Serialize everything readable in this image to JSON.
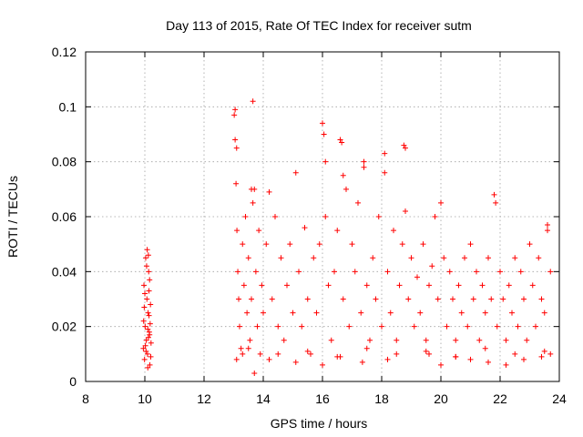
{
  "chart_data": {
    "type": "scatter",
    "title": "Day 113 of 2015, Rate Of TEC Index for receiver sutm",
    "xlabel": "GPS time / hours",
    "ylabel": "ROTI / TECUs",
    "xlim": [
      8,
      24
    ],
    "ylim": [
      0,
      0.12
    ],
    "x_ticks": [
      "8",
      "10",
      "12",
      "14",
      "16",
      "18",
      "20",
      "22",
      "24"
    ],
    "y_ticks": [
      "0",
      "0.02",
      "0.04",
      "0.06",
      "0.08",
      "0.1",
      "0.12"
    ],
    "grid": true,
    "legend": "none",
    "marker": "+",
    "series_color": "#ff0000",
    "series": [
      {
        "x": [
          9.95,
          9.97,
          9.99,
          10.01,
          10.03,
          10.05,
          10.07,
          10.09,
          10.11,
          10.13,
          10.15,
          10.17,
          10.19,
          10.21,
          9.96,
          10.0,
          10.04,
          10.08,
          10.12,
          10.16,
          10.2,
          9.98,
          10.02,
          10.06,
          10.1,
          10.14,
          10.18,
          10.1,
          10.12,
          10.14,
          10.16,
          13.02,
          13.05,
          13.08,
          13.11,
          13.14,
          13.17,
          13.2,
          13.25,
          13.3,
          13.35,
          13.4,
          13.45,
          13.5,
          13.55,
          13.6,
          13.65,
          13.7,
          13.75,
          13.8,
          13.85,
          13.9,
          13.95,
          14.0,
          14.1,
          14.2,
          14.3,
          14.4,
          14.5,
          14.6,
          14.7,
          14.8,
          14.9,
          15.0,
          15.1,
          15.2,
          15.3,
          15.4,
          15.5,
          15.6,
          15.7,
          15.8,
          15.9,
          16.0,
          16.1,
          16.2,
          16.3,
          16.4,
          16.5,
          16.6,
          16.7,
          16.8,
          16.9,
          17.0,
          17.1,
          17.2,
          17.3,
          17.4,
          17.5,
          17.6,
          17.7,
          17.8,
          17.9,
          18.0,
          18.1,
          18.2,
          18.3,
          18.4,
          18.5,
          18.6,
          18.7,
          18.8,
          18.9,
          19.0,
          19.1,
          19.2,
          19.3,
          19.4,
          19.5,
          19.6,
          19.7,
          19.8,
          19.9,
          20.0,
          20.1,
          20.2,
          20.3,
          20.4,
          20.5,
          20.6,
          20.7,
          20.8,
          20.9,
          21.0,
          21.1,
          21.2,
          21.3,
          21.4,
          21.5,
          21.6,
          21.7,
          21.8,
          21.9,
          22.0,
          22.1,
          22.2,
          22.3,
          22.4,
          22.5,
          22.6,
          22.7,
          22.8,
          22.9,
          23.0,
          23.1,
          23.2,
          23.3,
          23.4,
          23.5,
          23.6,
          23.7,
          13.05,
          13.1,
          13.6,
          13.65,
          13.7,
          16.05,
          16.1,
          16.65,
          16.7,
          17.4,
          18.1,
          18.75,
          18.8,
          21.85,
          23.6,
          13.1,
          13.3,
          14.2,
          15.1,
          16.0,
          16.6,
          17.35,
          18.2,
          19.6,
          20.0,
          20.5,
          21.0,
          21.6,
          22.2,
          22.8,
          23.4,
          23.7,
          13.5,
          14.5,
          15.5,
          16.5,
          17.5,
          18.5,
          19.5,
          20.5,
          21.5,
          22.5,
          23.5
        ],
        "y": [
          0.012,
          0.035,
          0.008,
          0.02,
          0.045,
          0.015,
          0.03,
          0.01,
          0.025,
          0.04,
          0.018,
          0.006,
          0.028,
          0.014,
          0.022,
          0.032,
          0.011,
          0.048,
          0.016,
          0.037,
          0.009,
          0.027,
          0.013,
          0.042,
          0.019,
          0.033,
          0.021,
          0.005,
          0.046,
          0.024,
          0.017,
          0.097,
          0.088,
          0.072,
          0.055,
          0.04,
          0.03,
          0.02,
          0.012,
          0.05,
          0.035,
          0.06,
          0.025,
          0.045,
          0.015,
          0.03,
          0.102,
          0.07,
          0.04,
          0.02,
          0.055,
          0.01,
          0.035,
          0.025,
          0.05,
          0.069,
          0.03,
          0.06,
          0.02,
          0.045,
          0.015,
          0.035,
          0.05,
          0.025,
          0.076,
          0.04,
          0.02,
          0.056,
          0.03,
          0.01,
          0.045,
          0.025,
          0.05,
          0.094,
          0.06,
          0.035,
          0.015,
          0.04,
          0.055,
          0.088,
          0.03,
          0.07,
          0.02,
          0.05,
          0.04,
          0.065,
          0.025,
          0.08,
          0.035,
          0.015,
          0.045,
          0.03,
          0.06,
          0.02,
          0.083,
          0.04,
          0.025,
          0.055,
          0.015,
          0.035,
          0.05,
          0.085,
          0.03,
          0.045,
          0.02,
          0.038,
          0.025,
          0.05,
          0.015,
          0.035,
          0.042,
          0.06,
          0.03,
          0.065,
          0.045,
          0.02,
          0.04,
          0.03,
          0.015,
          0.035,
          0.025,
          0.045,
          0.02,
          0.05,
          0.03,
          0.04,
          0.015,
          0.035,
          0.025,
          0.045,
          0.03,
          0.068,
          0.02,
          0.04,
          0.03,
          0.015,
          0.035,
          0.025,
          0.045,
          0.02,
          0.04,
          0.03,
          0.015,
          0.05,
          0.035,
          0.02,
          0.045,
          0.03,
          0.025,
          0.057,
          0.04,
          0.099,
          0.085,
          0.07,
          0.065,
          0.003,
          0.09,
          0.08,
          0.087,
          0.075,
          0.078,
          0.076,
          0.086,
          0.062,
          0.065,
          0.055,
          0.008,
          0.01,
          0.008,
          0.007,
          0.006,
          0.009,
          0.007,
          0.008,
          0.01,
          0.006,
          0.009,
          0.008,
          0.007,
          0.006,
          0.008,
          0.009,
          0.01,
          0.012,
          0.01,
          0.011,
          0.009,
          0.012,
          0.01,
          0.011,
          0.009,
          0.012,
          0.01,
          0.011
        ]
      }
    ]
  }
}
